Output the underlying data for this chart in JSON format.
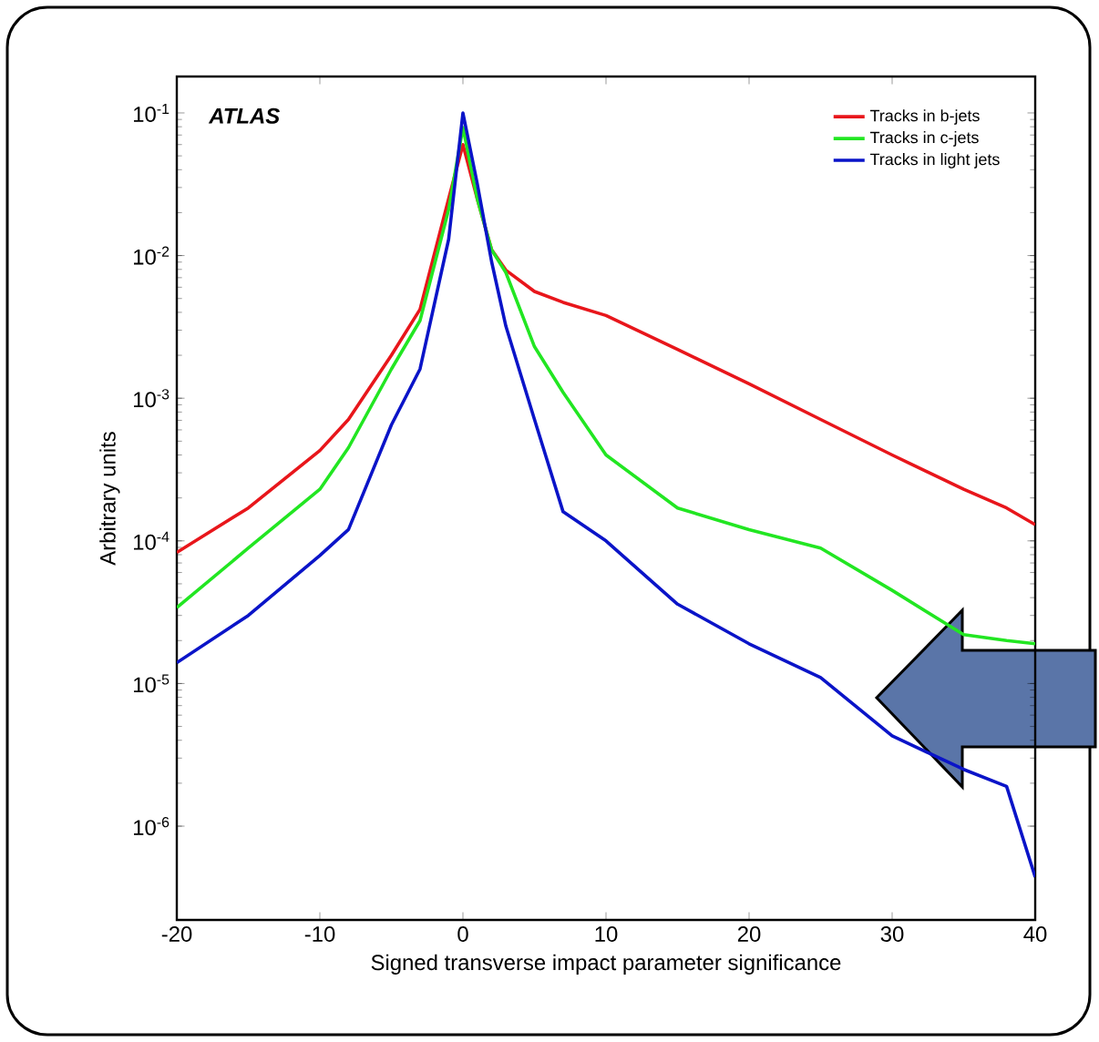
{
  "chart_data": {
    "type": "line",
    "xlabel": "Signed transverse impact parameter significance",
    "ylabel": "Arbitrary units",
    "annotations": [
      "ATLAS"
    ],
    "x": [
      -20,
      -15,
      -10,
      -8,
      -5,
      -3,
      -1,
      0,
      1,
      2,
      3,
      5,
      7,
      10,
      15,
      20,
      25,
      30,
      35,
      38,
      40
    ],
    "series": [
      {
        "name": "Tracks in b-jets",
        "color": "#e8161b",
        "values": [
          8.3e-05,
          0.00017,
          0.00043,
          0.00071,
          0.002,
          0.0042,
          0.025,
          0.06,
          0.025,
          0.011,
          0.0079,
          0.0056,
          0.0047,
          0.0038,
          0.0022,
          0.00126,
          0.00071,
          0.0004,
          0.00023,
          0.00017,
          0.00013
        ]
      },
      {
        "name": "Tracks in c-jets",
        "color": "#22e622",
        "values": [
          3.4e-05,
          8.9e-05,
          0.00023,
          0.00045,
          0.0016,
          0.0035,
          0.021,
          0.079,
          0.025,
          0.011,
          0.0076,
          0.0023,
          0.0011,
          0.0004,
          0.00017,
          0.00012,
          8.9e-05,
          4.5e-05,
          2.2e-05,
          2e-05,
          1.9e-05
        ]
      },
      {
        "name": "Tracks in light jets",
        "color": "#0a14c8",
        "values": [
          1.4e-05,
          3e-05,
          7.9e-05,
          0.00012,
          0.00065,
          0.0016,
          0.013,
          0.1,
          0.032,
          0.0091,
          0.0032,
          0.00071,
          0.00016,
          0.0001,
          3.6e-05,
          1.9e-05,
          1.1e-05,
          4.3e-06,
          2.5e-06,
          1.9e-06,
          4.4e-07
        ]
      }
    ],
    "log": "y",
    "legend": "top right",
    "xlim": [
      -20,
      40
    ],
    "xticks": [
      -20,
      -10,
      0,
      10,
      20,
      30,
      40
    ],
    "ylim": [
      2.2e-07,
      0.18
    ],
    "yticks": [
      {
        "value": 1e-06,
        "label": "10$^{-6}$"
      },
      {
        "value": 1e-05,
        "label": "10$^{-5}$"
      },
      {
        "value": 0.0001,
        "label": "10$^{-4}$"
      },
      {
        "value": 0.001,
        "label": "10$^{-3}$"
      },
      {
        "value": 0.01,
        "label": "10$^{-2}$"
      },
      {
        "value": 0.1,
        "label": "10$^{-1}$"
      }
    ]
  }
}
